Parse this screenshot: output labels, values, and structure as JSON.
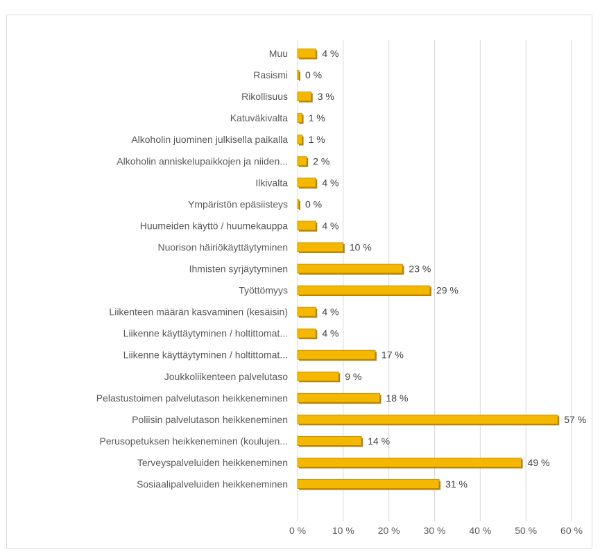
{
  "chart_data": {
    "type": "bar",
    "orientation": "horizontal",
    "categories": [
      "Muu",
      "Rasismi",
      "Rikollisuus",
      "Katuväkivalta",
      "Alkoholin juominen julkisella paikalla",
      "Alkoholin anniskelupaikkojen ja niiden...",
      "Ilkivalta",
      "Ympäristön epäsiisteys",
      "Huumeiden käyttö / huumekauppa",
      "Nuorison häiriökäyttäytyminen",
      "Ihmisten syrjäytyminen",
      "Työttömyys",
      "Liikenteen määrän kasvaminen (kesäisin)",
      "Liikenne käyttäytyminen / holtittomat...",
      "Liikenne käyttäytyminen / holtittomat...",
      "Joukkoliikenteen palvelutaso",
      "Pelastustoimen palvelutason heikkeneminen",
      "Poliisin palvelutason heikkeneminen",
      "Perusopetuksen heikkeneminen (koulujen...",
      "Terveyspalveluiden heikkeneminen",
      "Sosiaalipalveluiden heikkeneminen"
    ],
    "values": [
      4,
      0,
      3,
      1,
      1,
      2,
      4,
      0,
      4,
      10,
      23,
      29,
      4,
      4,
      17,
      9,
      18,
      57,
      14,
      49,
      31
    ],
    "value_labels": [
      "4 %",
      "0 %",
      "3 %",
      "1 %",
      "1 %",
      "2 %",
      "4 %",
      "0 %",
      "4 %",
      "10 %",
      "23 %",
      "29 %",
      "4 %",
      "4 %",
      "17 %",
      "9 %",
      "18 %",
      "57 %",
      "14 %",
      "49 %",
      "31 %"
    ],
    "x_ticks": [
      "0 %",
      "10 %",
      "20 %",
      "30 %",
      "40 %",
      "50 %",
      "60 %"
    ],
    "xlim": [
      0,
      60
    ],
    "grid": true,
    "legend": false,
    "title": "",
    "xlabel": "",
    "ylabel": "",
    "bar_color": "#f5b800",
    "bar_shadow_color": "#b98400",
    "grid_color": "#d9d9d9"
  }
}
